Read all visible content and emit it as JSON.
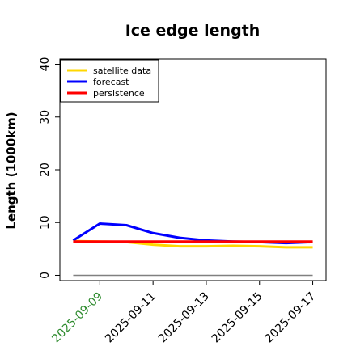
{
  "chart_data": {
    "type": "line",
    "title": "Ice edge length",
    "xlabel": "",
    "ylabel": "Length (1000km)",
    "x": [
      "2025-09-08",
      "2025-09-09",
      "2025-09-10",
      "2025-09-11",
      "2025-09-12",
      "2025-09-13",
      "2025-09-14",
      "2025-09-15",
      "2025-09-16",
      "2025-09-17"
    ],
    "x_ticks": [
      "2025-09-09",
      "2025-09-11",
      "2025-09-13",
      "2025-09-15",
      "2025-09-17"
    ],
    "highlight_tick": "2025-09-09",
    "highlight_color": "#2e8b2e",
    "xlim": [
      "2025-09-07T12:00",
      "2025-09-17T12:00"
    ],
    "ylim": [
      -1,
      41
    ],
    "y_ticks": [
      0,
      10,
      20,
      30,
      40
    ],
    "grid": false,
    "legend_position": "top-left",
    "baseline": {
      "value": 0,
      "color": "#808080"
    },
    "series": [
      {
        "name": "satellite data",
        "color": "#ffd700",
        "values": [
          6.5,
          6.4,
          6.3,
          5.8,
          5.5,
          5.5,
          5.6,
          5.5,
          5.3,
          5.3
        ]
      },
      {
        "name": "forecast",
        "color": "#0000ff",
        "values": [
          6.6,
          9.8,
          9.5,
          8.0,
          7.1,
          6.6,
          6.4,
          6.3,
          6.1,
          6.3
        ]
      },
      {
        "name": "persistence",
        "color": "#ff0000",
        "values": [
          6.4,
          6.4,
          6.4,
          6.4,
          6.4,
          6.4,
          6.4,
          6.4,
          6.4,
          6.4
        ]
      }
    ]
  }
}
